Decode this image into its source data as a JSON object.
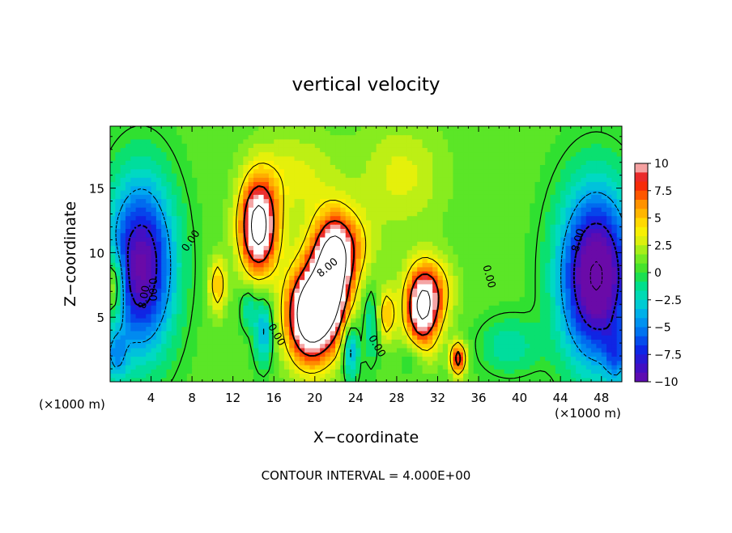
{
  "chart_data": {
    "type": "heatmap",
    "title": "vertical velocity",
    "xlabel": "X−coordinate",
    "ylabel": "Z−coordinate",
    "x_units_left": "(×1000 m)",
    "x_units_right": "(×1000 m)",
    "xlim": [
      0,
      50
    ],
    "ylim": [
      0,
      19.8
    ],
    "x_ticks": [
      "4",
      "8",
      "12",
      "16",
      "20",
      "24",
      "28",
      "32",
      "36",
      "40",
      "44",
      "48"
    ],
    "y_ticks": [
      "5",
      "10",
      "15"
    ],
    "colorbar": {
      "range": [
        -10,
        10
      ],
      "labels": [
        "10",
        "7.5",
        "5",
        "2.5",
        "0",
        "−2.5",
        "−5",
        "−7.5",
        "−10"
      ]
    },
    "contour_labels": [
      "0.00",
      "0.00",
      "0.00",
      "0.00",
      "0.00",
      "8.00",
      "8.00",
      "8.00"
    ],
    "footer": "CONTOUR INTERVAL = 4.000E+00",
    "features": [
      {
        "x": 3.0,
        "z": 9.0,
        "sx": 2.2,
        "sz": 4.5,
        "w": -11
      },
      {
        "x": 0.4,
        "z": 7.5,
        "sx": 0.7,
        "sz": 1.8,
        "w": 6
      },
      {
        "x": 0.5,
        "z": 2.0,
        "sx": 0.8,
        "sz": 1.5,
        "w": -4
      },
      {
        "x": 14.5,
        "z": 12.0,
        "sx": 1.3,
        "sz": 2.6,
        "w": 13
      },
      {
        "x": 19.5,
        "z": 5.2,
        "sx": 1.6,
        "sz": 2.6,
        "w": 15
      },
      {
        "x": 21.8,
        "z": 7.8,
        "sx": 1.3,
        "sz": 3.0,
        "w": 11
      },
      {
        "x": 22.5,
        "z": 10.5,
        "sx": 2.0,
        "sz": 2.0,
        "w": 6
      },
      {
        "x": 30.5,
        "z": 5.5,
        "sx": 1.2,
        "sz": 2.2,
        "w": 10.5
      },
      {
        "x": 31.5,
        "z": 7.2,
        "sx": 1.6,
        "sz": 1.8,
        "w": 4
      },
      {
        "x": 34.0,
        "z": 1.8,
        "sx": 0.5,
        "sz": 0.9,
        "w": 9
      },
      {
        "x": 10.5,
        "z": 7.5,
        "sx": 0.6,
        "sz": 1.6,
        "w": 5
      },
      {
        "x": 15.0,
        "z": 4.0,
        "sx": 0.6,
        "sz": 1.8,
        "w": -5
      },
      {
        "x": 13.5,
        "z": 5.8,
        "sx": 0.5,
        "sz": 1.2,
        "w": -3
      },
      {
        "x": 23.5,
        "z": 2.5,
        "sx": 0.5,
        "sz": 1.6,
        "w": -6
      },
      {
        "x": 25.5,
        "z": 4.5,
        "sx": 0.5,
        "sz": 2.0,
        "w": -3
      },
      {
        "x": 27.0,
        "z": 5.2,
        "sx": 0.6,
        "sz": 1.5,
        "w": 5
      },
      {
        "x": 29.5,
        "z": 2.0,
        "sx": 0.8,
        "sz": 1.0,
        "w": -2
      },
      {
        "x": 28.5,
        "z": 16.0,
        "sx": 3.0,
        "sz": 3.0,
        "w": 2.5
      },
      {
        "x": 18.0,
        "z": 16.0,
        "sx": 3.0,
        "sz": 2.5,
        "w": 2.5
      },
      {
        "x": 39.0,
        "z": 2.8,
        "sx": 2.0,
        "sz": 1.5,
        "w": -2.5
      },
      {
        "x": 47.5,
        "z": 8.2,
        "sx": 2.4,
        "sz": 4.5,
        "w": -13
      },
      {
        "x": 49.5,
        "z": 2.0,
        "sx": 0.8,
        "sz": 1.5,
        "w": -4
      }
    ]
  }
}
